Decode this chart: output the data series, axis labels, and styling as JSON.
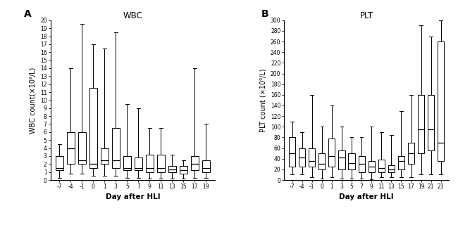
{
  "wbc_labels": [
    "-7",
    "-4",
    "-1",
    "0",
    "1",
    "3",
    "5",
    "7",
    "9",
    "11",
    "13",
    "15",
    "17",
    "19"
  ],
  "wbc_data": [
    {
      "whislo": 0.3,
      "q1": 1.2,
      "med": 1.5,
      "q3": 3.0,
      "whishi": 4.5
    },
    {
      "whislo": 0.8,
      "q1": 2.0,
      "med": 4.0,
      "q3": 6.0,
      "whishi": 14.0
    },
    {
      "whislo": 0.8,
      "q1": 2.0,
      "med": 2.5,
      "q3": 6.0,
      "whishi": 19.5
    },
    {
      "whislo": 0.5,
      "q1": 1.5,
      "med": 2.0,
      "q3": 11.5,
      "whishi": 17.0
    },
    {
      "whislo": 0.5,
      "q1": 2.0,
      "med": 2.5,
      "q3": 4.0,
      "whishi": 16.5
    },
    {
      "whislo": 0.5,
      "q1": 1.5,
      "med": 2.5,
      "q3": 6.5,
      "whishi": 18.5
    },
    {
      "whislo": 0.3,
      "q1": 1.2,
      "med": 1.5,
      "q3": 3.0,
      "whishi": 9.5
    },
    {
      "whislo": 0.3,
      "q1": 1.2,
      "med": 1.5,
      "q3": 2.8,
      "whishi": 9.0
    },
    {
      "whislo": 0.2,
      "q1": 1.0,
      "med": 1.5,
      "q3": 3.2,
      "whishi": 6.5
    },
    {
      "whislo": 0.2,
      "q1": 1.0,
      "med": 1.5,
      "q3": 3.2,
      "whishi": 6.5
    },
    {
      "whislo": 0.2,
      "q1": 1.0,
      "med": 1.3,
      "q3": 1.8,
      "whishi": 3.2
    },
    {
      "whislo": 0.2,
      "q1": 0.8,
      "med": 1.2,
      "q3": 1.8,
      "whishi": 2.5
    },
    {
      "whislo": 0.3,
      "q1": 1.2,
      "med": 2.0,
      "q3": 3.0,
      "whishi": 14.0
    },
    {
      "whislo": 0.3,
      "q1": 1.0,
      "med": 1.5,
      "q3": 2.5,
      "whishi": 7.0
    }
  ],
  "wbc_ylim": [
    0,
    20
  ],
  "wbc_yticks": [
    0,
    1,
    2,
    3,
    4,
    5,
    6,
    7,
    8,
    9,
    10,
    11,
    12,
    13,
    14,
    15,
    16,
    17,
    18,
    19,
    20
  ],
  "wbc_ylabel": "WBC count(×10⁹/L)",
  "wbc_title": "WBC",
  "wbc_panel": "A",
  "plt_labels": [
    "-7",
    "-4",
    "-1",
    "0",
    "1",
    "3",
    "5",
    "7",
    "9",
    "11",
    "13",
    "15",
    "17",
    "19",
    "21",
    "23"
  ],
  "plt_data": [
    {
      "whislo": 10.0,
      "q1": 25.0,
      "med": 50.0,
      "q3": 80.0,
      "whishi": 110.0
    },
    {
      "whislo": 10.0,
      "q1": 25.0,
      "med": 42.0,
      "q3": 60.0,
      "whishi": 90.0
    },
    {
      "whislo": 5.0,
      "q1": 25.0,
      "med": 35.0,
      "q3": 60.0,
      "whishi": 160.0
    },
    {
      "whislo": 2.0,
      "q1": 20.0,
      "med": 30.0,
      "q3": 50.0,
      "whishi": 100.0
    },
    {
      "whislo": 5.0,
      "q1": 25.0,
      "med": 45.0,
      "q3": 78.0,
      "whishi": 140.0
    },
    {
      "whislo": 2.0,
      "q1": 20.0,
      "med": 42.0,
      "q3": 55.0,
      "whishi": 100.0
    },
    {
      "whislo": 2.0,
      "q1": 20.0,
      "med": 32.0,
      "q3": 50.0,
      "whishi": 80.0
    },
    {
      "whislo": 2.0,
      "q1": 15.0,
      "med": 30.0,
      "q3": 45.0,
      "whishi": 80.0
    },
    {
      "whislo": 1.0,
      "q1": 15.0,
      "med": 25.0,
      "q3": 35.0,
      "whishi": 100.0
    },
    {
      "whislo": 5.0,
      "q1": 15.0,
      "med": 22.0,
      "q3": 38.0,
      "whishi": 90.0
    },
    {
      "whislo": 5.0,
      "q1": 15.0,
      "med": 20.0,
      "q3": 28.0,
      "whishi": 85.0
    },
    {
      "whislo": 5.0,
      "q1": 20.0,
      "med": 35.0,
      "q3": 45.0,
      "whishi": 130.0
    },
    {
      "whislo": 5.0,
      "q1": 30.0,
      "med": 50.0,
      "q3": 70.0,
      "whishi": 160.0
    },
    {
      "whislo": 10.0,
      "q1": 50.0,
      "med": 95.0,
      "q3": 160.0,
      "whishi": 290.0
    },
    {
      "whislo": 10.0,
      "q1": 55.0,
      "med": 95.0,
      "q3": 160.0,
      "whishi": 270.0
    },
    {
      "whislo": 10.0,
      "q1": 35.0,
      "med": 70.0,
      "q3": 260.0,
      "whishi": 300.0
    }
  ],
  "plt_ylim": [
    0,
    300
  ],
  "plt_yticks": [
    0,
    20,
    40,
    60,
    80,
    100,
    120,
    140,
    160,
    180,
    200,
    220,
    240,
    260,
    280,
    300
  ],
  "plt_ylabel": "PLT count (×10⁹/L)",
  "plt_title": "PLT",
  "plt_panel": "B",
  "xlabel": "Day after HLI",
  "box_color": "white",
  "median_color": "black",
  "whisker_color": "black",
  "box_edgecolor": "black"
}
